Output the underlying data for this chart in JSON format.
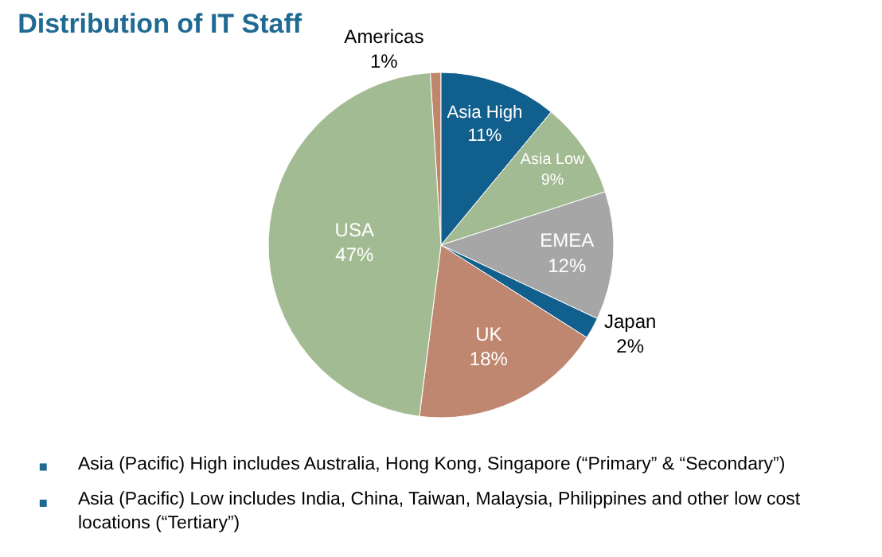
{
  "chart_data": {
    "type": "pie",
    "title": "Distribution of IT Staff",
    "categories": [
      "Americas",
      "Asia High",
      "Asia Low",
      "EMEA",
      "Japan",
      "UK",
      "USA"
    ],
    "values": [
      1,
      11,
      9,
      12,
      2,
      18,
      47
    ],
    "value_labels": [
      "1%",
      "11%",
      "9%",
      "12%",
      "2%",
      "18%",
      "47%"
    ],
    "colors": [
      "#c0866c",
      "#115f8c",
      "#a3bb93",
      "#a6a6a6",
      "#115f8c",
      "#bf876f",
      "#a3bb93"
    ],
    "legend": false,
    "annotations": [
      "Asia (Pacific) High includes Australia, Hong Kong, Singapore (“Primary” & “Secondary”)",
      "Asia (Pacific) Low includes India, China, Taiwan, Malaysia, Philippines and other low cost locations (“Tertiary”)"
    ]
  }
}
